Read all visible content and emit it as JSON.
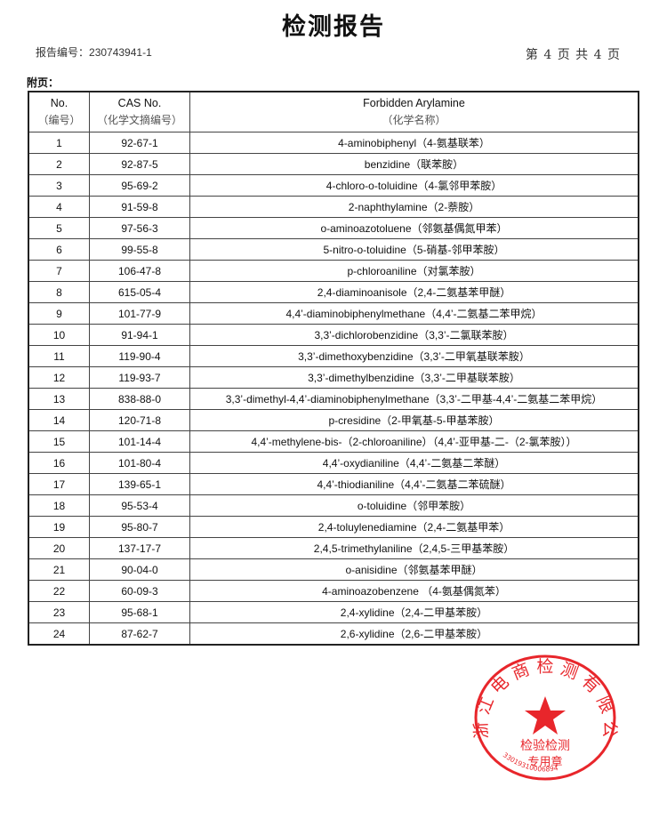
{
  "header": {
    "title": "检测报告",
    "report_no_label": "报告编号：",
    "report_no": "230743941-1",
    "page_info": "第 4 页 共 4 页",
    "appendix": "附页："
  },
  "table": {
    "columns": [
      {
        "en": "No.",
        "cn": "（编号）"
      },
      {
        "en": "CAS No.",
        "cn": "（化学文摘编号）"
      },
      {
        "en": "Forbidden Arylamine",
        "cn": "（化学名称）"
      }
    ],
    "rows": [
      [
        "1",
        "92-67-1",
        "4-aminobiphenyl（4-氨基联苯）"
      ],
      [
        "2",
        "92-87-5",
        "benzidine（联苯胺）"
      ],
      [
        "3",
        "95-69-2",
        "4-chloro-o-toluidine（4-氯邻甲苯胺）"
      ],
      [
        "4",
        "91-59-8",
        "2-naphthylamine（2-萘胺）"
      ],
      [
        "5",
        "97-56-3",
        "o-aminoazotoluene（邻氨基偶氮甲苯）"
      ],
      [
        "6",
        "99-55-8",
        "5-nitro-o-toluidine（5-硝基-邻甲苯胺）"
      ],
      [
        "7",
        "106-47-8",
        "p-chloroaniline（对氯苯胺）"
      ],
      [
        "8",
        "615-05-4",
        "2,4-diaminoanisole（2,4-二氨基苯甲醚）"
      ],
      [
        "9",
        "101-77-9",
        "4,4’-diaminobiphenylmethane（4,4’-二氨基二苯甲烷）"
      ],
      [
        "10",
        "91-94-1",
        "3,3’-dichlorobenzidine（3,3’-二氯联苯胺）"
      ],
      [
        "11",
        "119-90-4",
        "3,3’-dimethoxybenzidine（3,3’-二甲氧基联苯胺）"
      ],
      [
        "12",
        "119-93-7",
        "3,3’-dimethylbenzidine（3,3’-二甲基联苯胺）"
      ],
      [
        "13",
        "838-88-0",
        "3,3’-dimethyl-4,4’-diaminobiphenylmethane（3,3’-二甲基-4,4’-二氨基二苯甲烷）"
      ],
      [
        "14",
        "120-71-8",
        "p-cresidine（2-甲氧基-5-甲基苯胺）"
      ],
      [
        "15",
        "101-14-4",
        "4,4’-methylene-bis-（2-chloroaniline）（4,4’-亚甲基-二-（2-氯苯胺））"
      ],
      [
        "16",
        "101-80-4",
        "4,4’-oxydianiline（4,4’-二氨基二苯醚）"
      ],
      [
        "17",
        "139-65-1",
        "4,4’-thiodianiline（4,4’-二氨基二苯硫醚）"
      ],
      [
        "18",
        "95-53-4",
        "o-toluidine（邻甲苯胺）"
      ],
      [
        "19",
        "95-80-7",
        "2,4-toluylenediamine（2,4-二氨基甲苯）"
      ],
      [
        "20",
        "137-17-7",
        "2,4,5-trimethylaniline（2,4,5-三甲基苯胺）"
      ],
      [
        "21",
        "90-04-0",
        "o-anisidine（邻氨基苯甲醚）"
      ],
      [
        "22",
        "60-09-3",
        "4-aminoazobenzene （4-氨基偶氮苯）"
      ],
      [
        "23",
        "95-68-1",
        "2,4-xylidine（2,4-二甲基苯胺）"
      ],
      [
        "24",
        "87-62-7",
        "2,6-xylidine（2,6-二甲基苯胺）"
      ]
    ]
  },
  "seal": {
    "company": "浙江电商检测有限公司",
    "purpose_line1": "检验检测",
    "purpose_line2": "专用章",
    "code": "33019310006894",
    "color": "#e8262b"
  }
}
